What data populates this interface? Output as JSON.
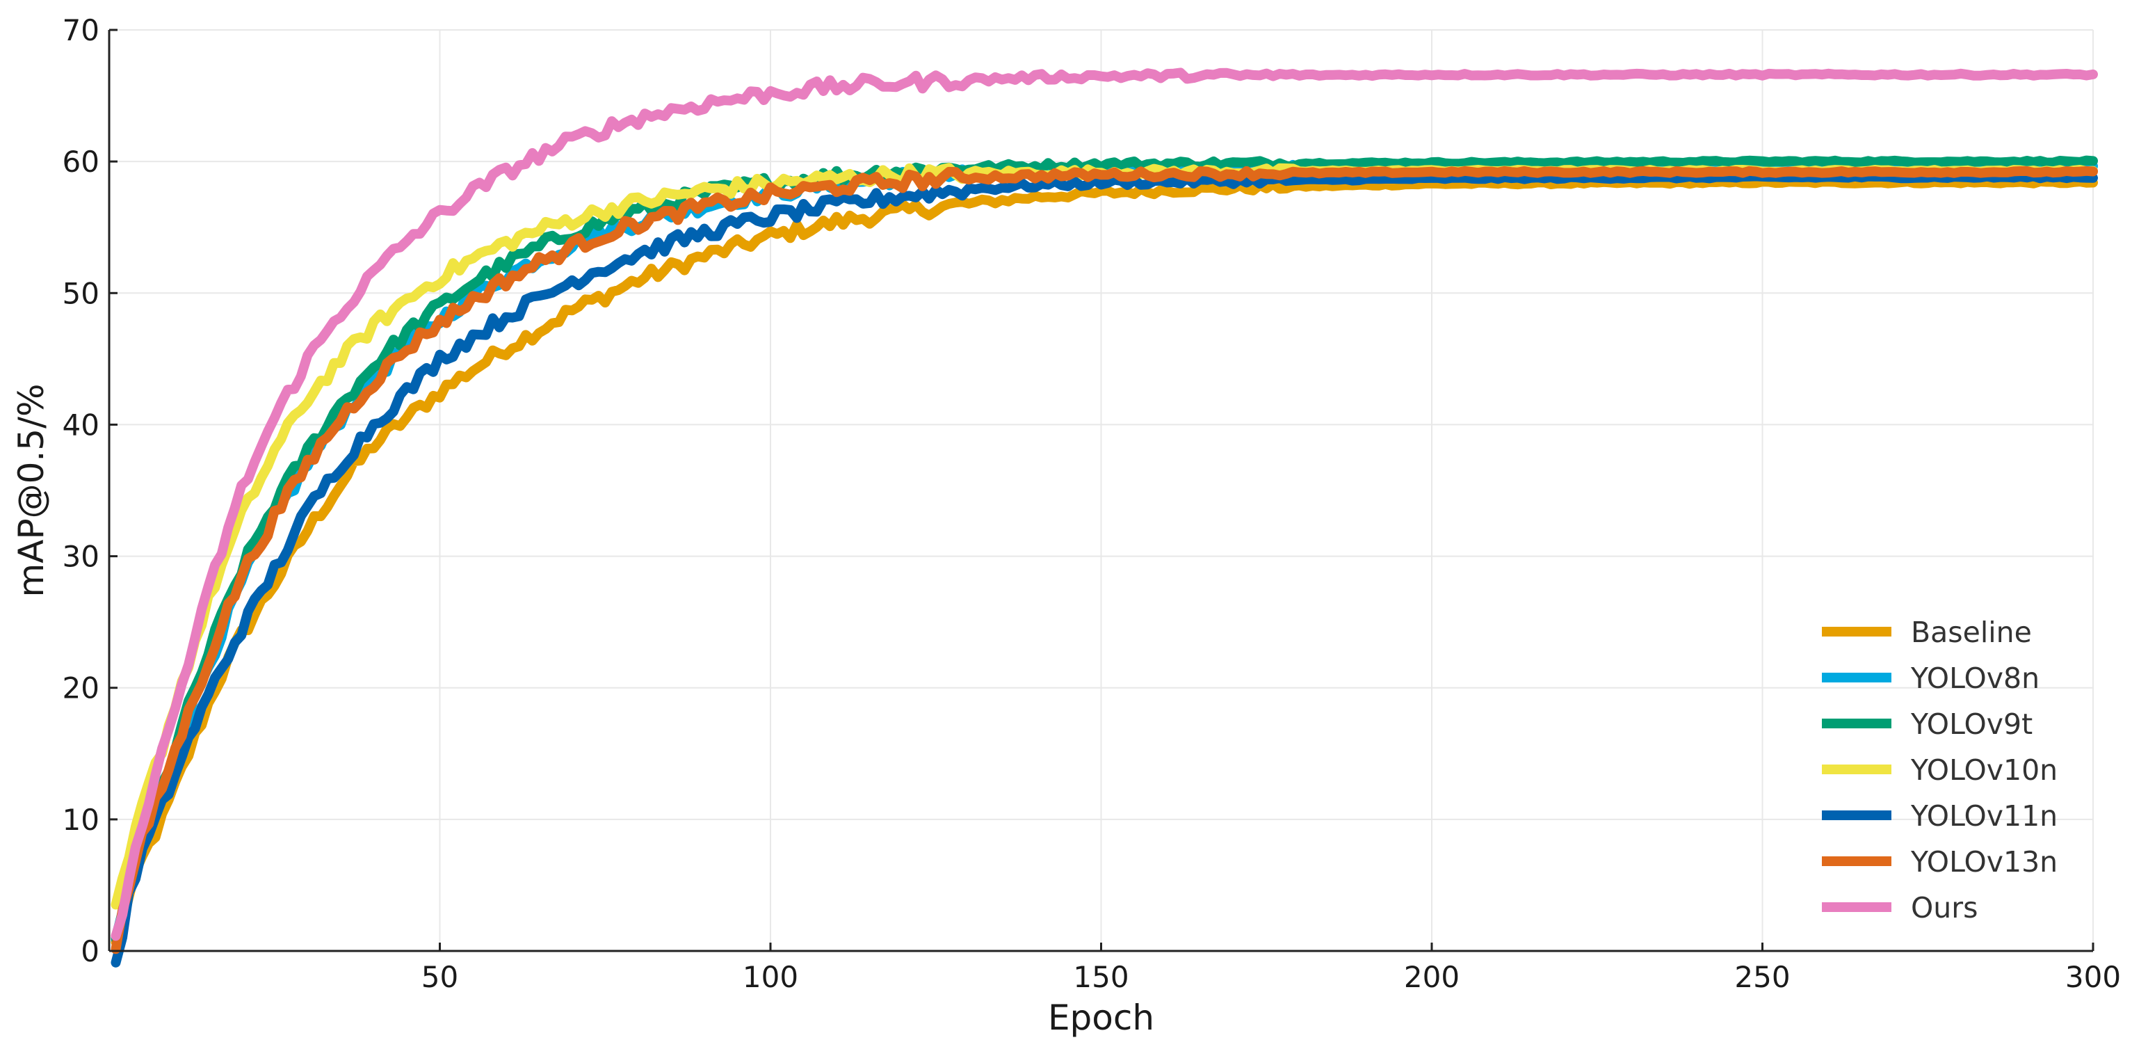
{
  "chart_data": {
    "type": "line",
    "title": "",
    "xlabel": "Epoch",
    "ylabel": "mAP@0.5/%",
    "xlim": [
      0,
      300
    ],
    "ylim": [
      0,
      70
    ],
    "xticks": [
      50,
      100,
      150,
      200,
      250,
      300
    ],
    "yticks": [
      0,
      10,
      20,
      30,
      40,
      50,
      60,
      70
    ],
    "grid": true,
    "legend_position": "lower-right",
    "series": [
      {
        "name": "Baseline",
        "color": "#E69F00",
        "points": [
          [
            1,
            0.5
          ],
          [
            3,
            4
          ],
          [
            5,
            7
          ],
          [
            8,
            10
          ],
          [
            12,
            15
          ],
          [
            16,
            20
          ],
          [
            20,
            24
          ],
          [
            25,
            28
          ],
          [
            30,
            32
          ],
          [
            35,
            35.5
          ],
          [
            40,
            38.5
          ],
          [
            45,
            40.5
          ],
          [
            50,
            42.5
          ],
          [
            55,
            44.2
          ],
          [
            60,
            45.8
          ],
          [
            65,
            47.2
          ],
          [
            70,
            48.7
          ],
          [
            75,
            49.8
          ],
          [
            80,
            51
          ],
          [
            90,
            52.8
          ],
          [
            100,
            54.3
          ],
          [
            110,
            55.4
          ],
          [
            120,
            56.2
          ],
          [
            130,
            56.8
          ],
          [
            140,
            57.3
          ],
          [
            150,
            57.6
          ],
          [
            160,
            57.8
          ],
          [
            180,
            58.1
          ],
          [
            200,
            58.3
          ],
          [
            250,
            58.4
          ],
          [
            300,
            58.4
          ]
        ]
      },
      {
        "name": "YOLOv8n",
        "color": "#00A9E0",
        "points": [
          [
            1,
            0.5
          ],
          [
            3,
            5
          ],
          [
            5,
            8
          ],
          [
            8,
            12
          ],
          [
            12,
            18
          ],
          [
            16,
            23
          ],
          [
            20,
            28
          ],
          [
            25,
            33
          ],
          [
            30,
            37
          ],
          [
            35,
            40.5
          ],
          [
            40,
            43.5
          ],
          [
            45,
            46
          ],
          [
            50,
            48
          ],
          [
            55,
            49.8
          ],
          [
            60,
            51.3
          ],
          [
            65,
            52.6
          ],
          [
            70,
            53.7
          ],
          [
            75,
            54.6
          ],
          [
            80,
            55.4
          ],
          [
            90,
            56.7
          ],
          [
            100,
            57.6
          ],
          [
            110,
            58.3
          ],
          [
            120,
            58.8
          ],
          [
            130,
            59.1
          ],
          [
            150,
            59.4
          ],
          [
            200,
            59.6
          ],
          [
            250,
            59.6
          ],
          [
            300,
            59.6
          ]
        ]
      },
      {
        "name": "YOLOv9t",
        "color": "#009E73",
        "points": [
          [
            1,
            0.5
          ],
          [
            3,
            5
          ],
          [
            5,
            8.5
          ],
          [
            8,
            12.5
          ],
          [
            12,
            18.5
          ],
          [
            16,
            24
          ],
          [
            20,
            29
          ],
          [
            25,
            34
          ],
          [
            30,
            38
          ],
          [
            35,
            41.5
          ],
          [
            40,
            44.5
          ],
          [
            45,
            47
          ],
          [
            50,
            49
          ],
          [
            55,
            50.8
          ],
          [
            60,
            52.2
          ],
          [
            65,
            53.5
          ],
          [
            70,
            54.6
          ],
          [
            75,
            55.5
          ],
          [
            80,
            56.3
          ],
          [
            90,
            57.6
          ],
          [
            100,
            58.4
          ],
          [
            110,
            58.9
          ],
          [
            120,
            59.3
          ],
          [
            130,
            59.5
          ],
          [
            150,
            59.8
          ],
          [
            200,
            59.9
          ],
          [
            250,
            60
          ],
          [
            300,
            60
          ]
        ]
      },
      {
        "name": "YOLOv10n",
        "color": "#F0E442",
        "points": [
          [
            1,
            3
          ],
          [
            3,
            7
          ],
          [
            5,
            11
          ],
          [
            8,
            15.5
          ],
          [
            12,
            22
          ],
          [
            16,
            28
          ],
          [
            20,
            33
          ],
          [
            25,
            38
          ],
          [
            30,
            42
          ],
          [
            35,
            45
          ],
          [
            40,
            47.5
          ],
          [
            45,
            49.5
          ],
          [
            50,
            51.2
          ],
          [
            55,
            52.6
          ],
          [
            60,
            53.8
          ],
          [
            65,
            54.8
          ],
          [
            70,
            55.6
          ],
          [
            75,
            56.3
          ],
          [
            80,
            56.9
          ],
          [
            90,
            57.8
          ],
          [
            100,
            58.3
          ],
          [
            110,
            58.7
          ],
          [
            120,
            59
          ],
          [
            130,
            59.1
          ],
          [
            150,
            59.2
          ],
          [
            200,
            59.3
          ],
          [
            250,
            59.3
          ],
          [
            300,
            59.3
          ]
        ]
      },
      {
        "name": "YOLOv11n",
        "color": "#0062B0",
        "points": [
          [
            1,
            -1
          ],
          [
            3,
            4
          ],
          [
            5,
            7.5
          ],
          [
            8,
            11
          ],
          [
            12,
            16
          ],
          [
            16,
            20.5
          ],
          [
            20,
            24.5
          ],
          [
            25,
            29
          ],
          [
            30,
            33.5
          ],
          [
            35,
            37
          ],
          [
            40,
            40
          ],
          [
            45,
            42.5
          ],
          [
            50,
            45
          ],
          [
            55,
            46.7
          ],
          [
            60,
            48.2
          ],
          [
            65,
            49.6
          ],
          [
            70,
            50.9
          ],
          [
            75,
            52
          ],
          [
            80,
            53
          ],
          [
            90,
            54.6
          ],
          [
            100,
            55.8
          ],
          [
            110,
            56.7
          ],
          [
            120,
            57.4
          ],
          [
            130,
            57.9
          ],
          [
            140,
            58.2
          ],
          [
            150,
            58.4
          ],
          [
            200,
            58.7
          ],
          [
            250,
            58.8
          ],
          [
            300,
            58.8
          ]
        ]
      },
      {
        "name": "YOLOv13n",
        "color": "#E0691A",
        "points": [
          [
            1,
            0.5
          ],
          [
            3,
            5
          ],
          [
            5,
            8.5
          ],
          [
            8,
            12.5
          ],
          [
            12,
            18
          ],
          [
            16,
            23.5
          ],
          [
            20,
            28.5
          ],
          [
            25,
            33
          ],
          [
            30,
            37
          ],
          [
            35,
            40.5
          ],
          [
            40,
            43.3
          ],
          [
            45,
            45.8
          ],
          [
            50,
            47.8
          ],
          [
            55,
            49.5
          ],
          [
            60,
            51
          ],
          [
            65,
            52.3
          ],
          [
            70,
            53.5
          ],
          [
            75,
            54.5
          ],
          [
            80,
            55.3
          ],
          [
            90,
            56.6
          ],
          [
            100,
            57.5
          ],
          [
            110,
            58.1
          ],
          [
            120,
            58.5
          ],
          [
            130,
            58.8
          ],
          [
            150,
            59
          ],
          [
            200,
            59.2
          ],
          [
            250,
            59.2
          ],
          [
            300,
            59.2
          ]
        ]
      },
      {
        "name": "Ours",
        "color": "#E87EBF",
        "points": [
          [
            1,
            1
          ],
          [
            3,
            5
          ],
          [
            5,
            10
          ],
          [
            8,
            15
          ],
          [
            12,
            22
          ],
          [
            16,
            29
          ],
          [
            20,
            35
          ],
          [
            25,
            40.5
          ],
          [
            30,
            45
          ],
          [
            35,
            48.5
          ],
          [
            40,
            51.5
          ],
          [
            45,
            54
          ],
          [
            50,
            56
          ],
          [
            55,
            57.7
          ],
          [
            60,
            59.2
          ],
          [
            65,
            60.5
          ],
          [
            70,
            61.6
          ],
          [
            75,
            62.5
          ],
          [
            80,
            63.3
          ],
          [
            90,
            64.4
          ],
          [
            100,
            65.2
          ],
          [
            110,
            65.7
          ],
          [
            120,
            66
          ],
          [
            130,
            66.2
          ],
          [
            140,
            66.4
          ],
          [
            150,
            66.5
          ],
          [
            200,
            66.6
          ],
          [
            250,
            66.6
          ],
          [
            300,
            66.6
          ]
        ]
      }
    ]
  }
}
